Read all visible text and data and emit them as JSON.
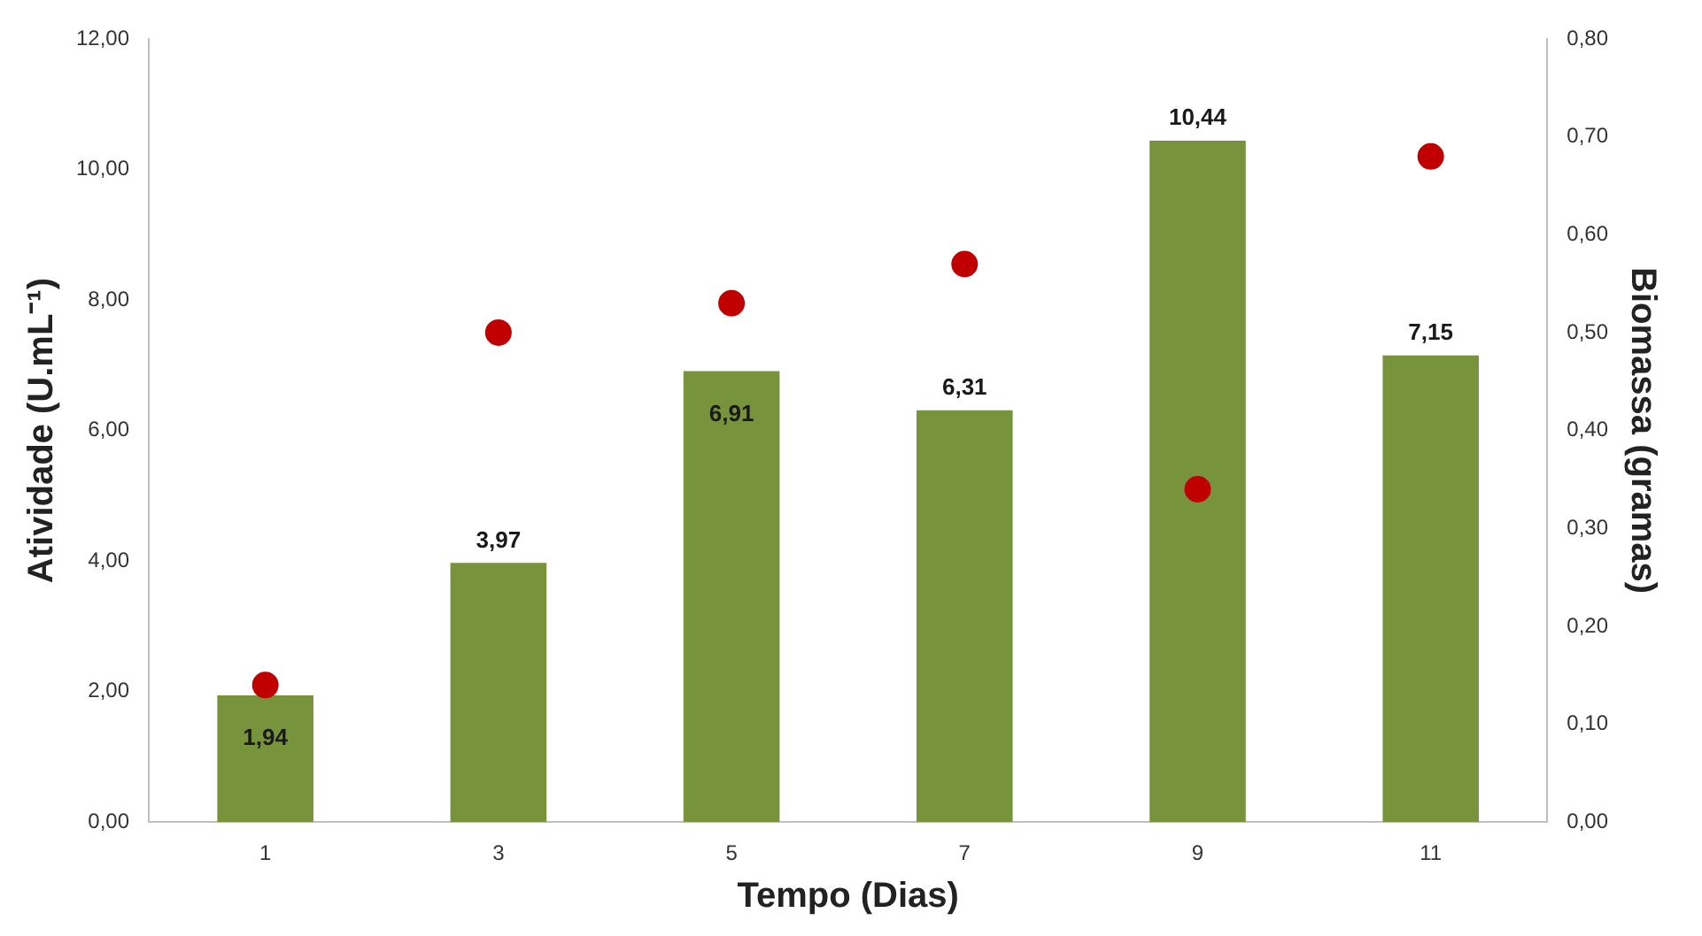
{
  "chart_data": {
    "type": "bar",
    "xlabel": "Tempo (Dias)",
    "ylabel": "Atividade (U.mL⁻¹)",
    "y2label": "Biomassa (gramas)",
    "categories": [
      "1",
      "3",
      "5",
      "7",
      "9",
      "11"
    ],
    "series": [
      {
        "color": "#77933c",
        "values": [
          1.94,
          3.97,
          6.91,
          6.31,
          10.44,
          7.15
        ],
        "value_labels": [
          "1,94",
          "3,97",
          "6,91",
          "6,31",
          "10,44",
          "7,15"
        ]
      },
      {
        "type": "scatter",
        "axis": "y2",
        "color": "#c00000",
        "x": [
          "1",
          "3",
          "5",
          "7",
          "9",
          "11"
        ],
        "values": [
          0.14,
          0.5,
          0.53,
          0.57,
          0.34,
          0.68
        ]
      }
    ],
    "ylim": [
      0,
      12
    ],
    "yticks": [
      {
        "value": 0,
        "label": "0,00"
      },
      {
        "value": 2,
        "label": "2,00"
      },
      {
        "value": 4,
        "label": "4,00"
      },
      {
        "value": 6,
        "label": "6,00"
      },
      {
        "value": 8,
        "label": "8,00"
      },
      {
        "value": 10,
        "label": "10,00"
      },
      {
        "value": 12,
        "label": "12,00"
      }
    ],
    "y2lim": [
      0,
      0.8
    ],
    "y2ticks": [
      {
        "value": 0,
        "label": "0,00"
      },
      {
        "value": 0.1,
        "label": "0,10"
      },
      {
        "value": 0.2,
        "label": "0,20"
      },
      {
        "value": 0.3,
        "label": "0,30"
      },
      {
        "value": 0.4,
        "label": "0,40"
      },
      {
        "value": 0.5,
        "label": "0,50"
      },
      {
        "value": 0.6,
        "label": "0,60"
      },
      {
        "value": 0.7,
        "label": "0,70"
      },
      {
        "value": 0.8,
        "label": "0,80"
      }
    ],
    "grid": false,
    "legend": false,
    "marker": "circle"
  }
}
